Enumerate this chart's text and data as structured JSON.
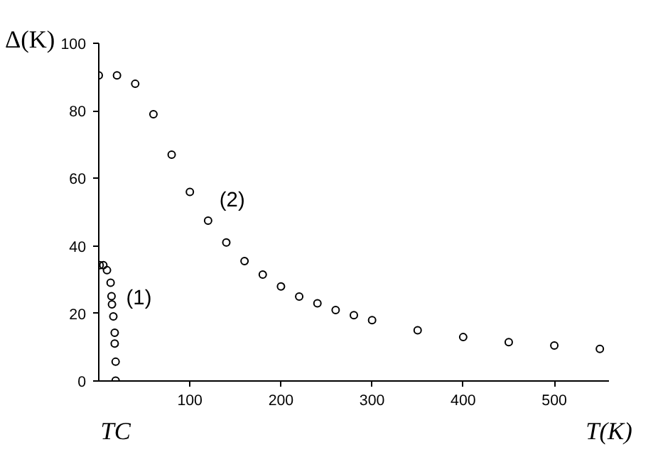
{
  "chart_data": {
    "type": "scatter",
    "xlabel": "T(K)",
    "ylabel": "Δ(K)",
    "xlim": [
      0,
      560
    ],
    "ylim": [
      0,
      100
    ],
    "xticks": [
      100,
      200,
      300,
      400,
      500
    ],
    "yticks": [
      0,
      20,
      40,
      60,
      80,
      100
    ],
    "marker": "circle",
    "grid": false,
    "legend": false,
    "series": [
      {
        "name": "(1)",
        "color": "#000000",
        "x": [
          1,
          5,
          9,
          13,
          14,
          14.5,
          16,
          17.5,
          17.5,
          18.5,
          18.5
        ],
        "values": [
          34.3,
          34.3,
          32.8,
          29.1,
          25.1,
          22.7,
          19.1,
          14.3,
          11.1,
          5.7,
          0.1
        ]
      },
      {
        "name": "(2)",
        "color": "#000000",
        "x": [
          0,
          20,
          40,
          60,
          80,
          100,
          120,
          140,
          160,
          180,
          200,
          220,
          240,
          260,
          280,
          300,
          350,
          400,
          450,
          500,
          550
        ],
        "values": [
          90.5,
          90.5,
          88,
          79,
          67,
          56,
          47.5,
          41,
          35.5,
          31.5,
          28,
          25,
          23,
          21,
          19.5,
          18,
          15,
          13,
          11.5,
          10.5,
          9.5
        ]
      }
    ],
    "annotations": [
      "TC"
    ]
  }
}
